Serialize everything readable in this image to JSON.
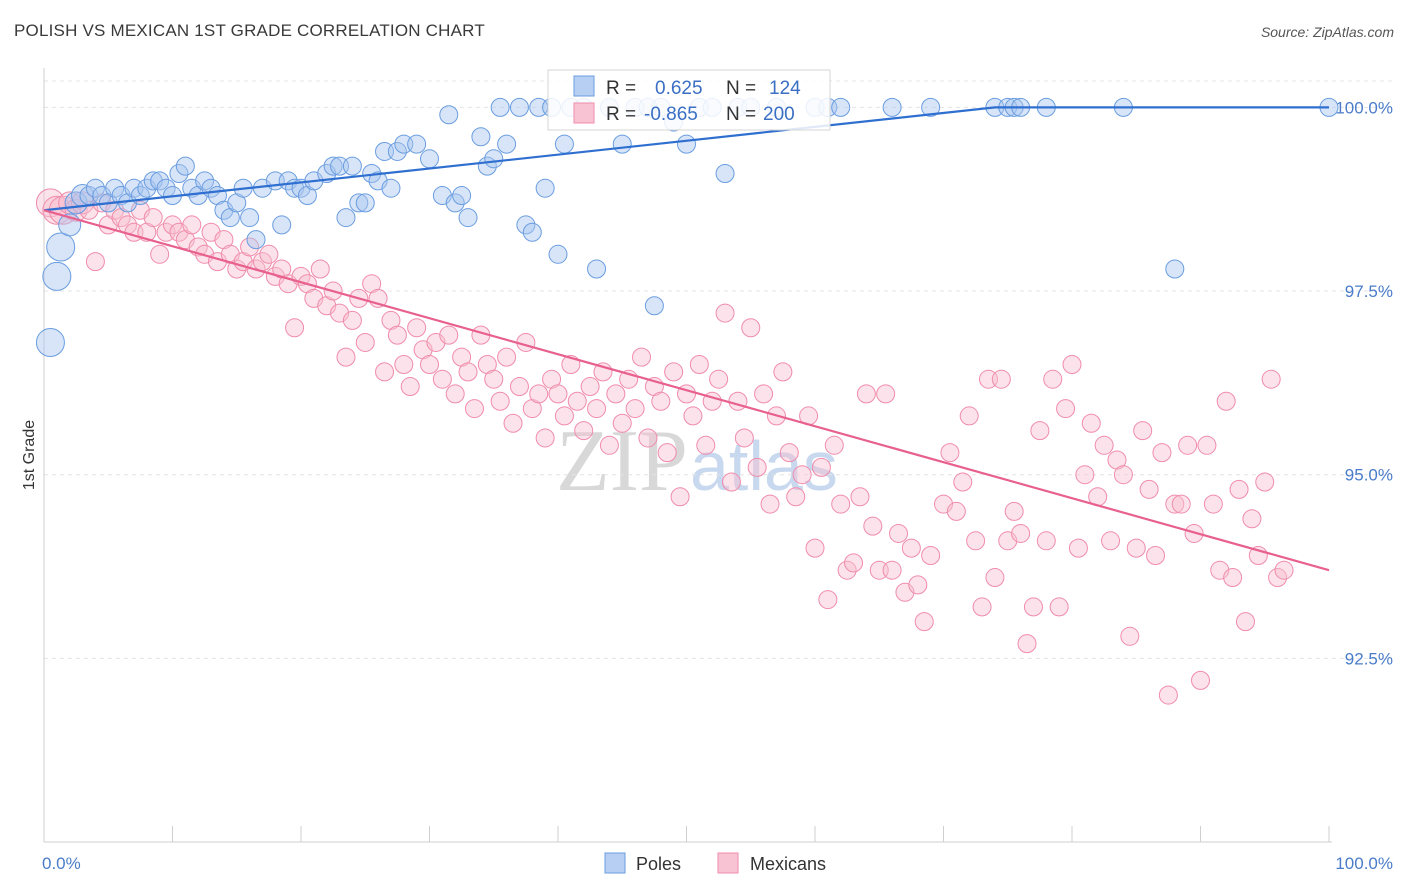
{
  "title": "POLISH VS MEXICAN 1ST GRADE CORRELATION CHART",
  "source": "Source: ZipAtlas.com",
  "watermark": {
    "zip": "ZIP",
    "atlas": "atlas"
  },
  "chart_data": {
    "type": "scatter",
    "title": "POLISH VS MEXICAN 1ST GRADE CORRELATION CHART",
    "xlabel": "",
    "ylabel": "1st Grade",
    "xlim": [
      0,
      100
    ],
    "ylim": [
      90.0,
      100.4
    ],
    "x_tick_labels": [
      "0.0%",
      "100.0%"
    ],
    "y_ticks": [
      92.5,
      95.0,
      97.5,
      100.0
    ],
    "y_tick_labels": [
      "92.5%",
      "95.0%",
      "97.5%",
      "100.0%"
    ],
    "grid": true,
    "colors": {
      "Poles": "#6a9de0",
      "Mexicans": "#f08cac",
      "poles_line": "#2f6fd0",
      "mexicans_line": "#e8608e",
      "axis_text": "#4a7cc9"
    },
    "stats": [
      {
        "series": "Poles",
        "r_label": "R =",
        "r_value": "0.625",
        "n_label": "N =",
        "n_value": "124"
      },
      {
        "series": "Mexicans",
        "r_label": "R =",
        "r_value": "-0.865",
        "n_label": "N =",
        "n_value": "200"
      }
    ],
    "trendlines": [
      {
        "series": "Poles",
        "points": [
          [
            0,
            98.6
          ],
          [
            74,
            100.0
          ],
          [
            100,
            100.0
          ]
        ]
      },
      {
        "series": "Mexicans",
        "points": [
          [
            0,
            98.6
          ],
          [
            100,
            93.7
          ]
        ]
      }
    ],
    "series": [
      {
        "name": "Poles",
        "points": [
          [
            0.5,
            96.8
          ],
          [
            1.0,
            97.7
          ],
          [
            1.3,
            98.1
          ],
          [
            2.0,
            98.4
          ],
          [
            2.5,
            98.7
          ],
          [
            3.0,
            98.8
          ],
          [
            3.5,
            98.8
          ],
          [
            4.0,
            98.9
          ],
          [
            4.5,
            98.8
          ],
          [
            5.0,
            98.7
          ],
          [
            5.5,
            98.9
          ],
          [
            6.0,
            98.8
          ],
          [
            6.5,
            98.7
          ],
          [
            7.0,
            98.9
          ],
          [
            7.5,
            98.8
          ],
          [
            8.0,
            98.9
          ],
          [
            8.5,
            99.0
          ],
          [
            9.0,
            99.0
          ],
          [
            9.5,
            98.9
          ],
          [
            10.0,
            98.8
          ],
          [
            10.5,
            99.1
          ],
          [
            11.0,
            99.2
          ],
          [
            11.5,
            98.9
          ],
          [
            12.0,
            98.8
          ],
          [
            12.5,
            99.0
          ],
          [
            13.0,
            98.9
          ],
          [
            13.5,
            98.8
          ],
          [
            14.0,
            98.6
          ],
          [
            14.5,
            98.5
          ],
          [
            15.0,
            98.7
          ],
          [
            15.5,
            98.9
          ],
          [
            16.0,
            98.5
          ],
          [
            16.5,
            98.2
          ],
          [
            17.0,
            98.9
          ],
          [
            18.0,
            99.0
          ],
          [
            18.5,
            98.4
          ],
          [
            19.0,
            99.0
          ],
          [
            19.5,
            98.9
          ],
          [
            20.0,
            98.9
          ],
          [
            20.5,
            98.8
          ],
          [
            21.0,
            99.0
          ],
          [
            22.0,
            99.1
          ],
          [
            22.5,
            99.2
          ],
          [
            23.0,
            99.2
          ],
          [
            23.5,
            98.5
          ],
          [
            24.0,
            99.2
          ],
          [
            24.5,
            98.7
          ],
          [
            25.0,
            98.7
          ],
          [
            25.5,
            99.1
          ],
          [
            26.0,
            99.0
          ],
          [
            26.5,
            99.4
          ],
          [
            27.0,
            98.9
          ],
          [
            27.5,
            99.4
          ],
          [
            28.0,
            99.5
          ],
          [
            29.0,
            99.5
          ],
          [
            30.0,
            99.3
          ],
          [
            31.0,
            98.8
          ],
          [
            31.5,
            99.9
          ],
          [
            32.0,
            98.7
          ],
          [
            32.5,
            98.8
          ],
          [
            33.0,
            98.5
          ],
          [
            34.0,
            99.6
          ],
          [
            34.5,
            99.2
          ],
          [
            35.0,
            99.3
          ],
          [
            35.5,
            100.0
          ],
          [
            36.0,
            99.5
          ],
          [
            37.0,
            100.0
          ],
          [
            37.5,
            98.4
          ],
          [
            38.0,
            98.3
          ],
          [
            38.5,
            100.0
          ],
          [
            39.0,
            98.9
          ],
          [
            39.5,
            100.0
          ],
          [
            40.0,
            98.0
          ],
          [
            40.5,
            99.5
          ],
          [
            41.0,
            100.0
          ],
          [
            42.0,
            100.0
          ],
          [
            43.0,
            97.8
          ],
          [
            44.0,
            100.0
          ],
          [
            45.0,
            99.5
          ],
          [
            46.0,
            100.0
          ],
          [
            47.0,
            100.0
          ],
          [
            47.5,
            97.3
          ],
          [
            48.0,
            100.0
          ],
          [
            49.0,
            99.8
          ],
          [
            50.0,
            99.5
          ],
          [
            51.0,
            100.0
          ],
          [
            52.0,
            100.0
          ],
          [
            53.0,
            99.1
          ],
          [
            54.0,
            100.0
          ],
          [
            55.0,
            100.0
          ],
          [
            57.0,
            100.0
          ],
          [
            60.0,
            100.0
          ],
          [
            61.0,
            100.0
          ],
          [
            62.0,
            100.0
          ],
          [
            66.0,
            100.0
          ],
          [
            69.0,
            100.0
          ],
          [
            74.0,
            100.0
          ],
          [
            75.0,
            100.0
          ],
          [
            75.5,
            100.0
          ],
          [
            76.0,
            100.0
          ],
          [
            78.0,
            100.0
          ],
          [
            84.0,
            100.0
          ],
          [
            88.0,
            97.8
          ],
          [
            100.0,
            100.0
          ]
        ]
      },
      {
        "name": "Mexicans",
        "points": [
          [
            0.5,
            98.7
          ],
          [
            1.0,
            98.6
          ],
          [
            1.5,
            98.6
          ],
          [
            2.0,
            98.7
          ],
          [
            2.5,
            98.6
          ],
          [
            3.0,
            98.7
          ],
          [
            3.5,
            98.6
          ],
          [
            4.0,
            97.9
          ],
          [
            4.5,
            98.7
          ],
          [
            5.0,
            98.4
          ],
          [
            5.5,
            98.6
          ],
          [
            6.0,
            98.5
          ],
          [
            6.5,
            98.4
          ],
          [
            7.0,
            98.3
          ],
          [
            7.5,
            98.6
          ],
          [
            8.0,
            98.3
          ],
          [
            8.5,
            98.5
          ],
          [
            9.0,
            98.0
          ],
          [
            9.5,
            98.3
          ],
          [
            10.0,
            98.4
          ],
          [
            10.5,
            98.3
          ],
          [
            11.0,
            98.2
          ],
          [
            11.5,
            98.4
          ],
          [
            12.0,
            98.1
          ],
          [
            12.5,
            98.0
          ],
          [
            13.0,
            98.3
          ],
          [
            13.5,
            97.9
          ],
          [
            14.0,
            98.2
          ],
          [
            14.5,
            98.0
          ],
          [
            15.0,
            97.8
          ],
          [
            15.5,
            97.9
          ],
          [
            16.0,
            98.1
          ],
          [
            16.5,
            97.8
          ],
          [
            17.0,
            97.9
          ],
          [
            17.5,
            98.0
          ],
          [
            18.0,
            97.7
          ],
          [
            18.5,
            97.8
          ],
          [
            19.0,
            97.6
          ],
          [
            19.5,
            97.0
          ],
          [
            20.0,
            97.7
          ],
          [
            20.5,
            97.6
          ],
          [
            21.0,
            97.4
          ],
          [
            21.5,
            97.8
          ],
          [
            22.0,
            97.3
          ],
          [
            22.5,
            97.5
          ],
          [
            23.0,
            97.2
          ],
          [
            23.5,
            96.6
          ],
          [
            24.0,
            97.1
          ],
          [
            24.5,
            97.4
          ],
          [
            25.0,
            96.8
          ],
          [
            25.5,
            97.6
          ],
          [
            26.0,
            97.4
          ],
          [
            26.5,
            96.4
          ],
          [
            27.0,
            97.1
          ],
          [
            27.5,
            96.9
          ],
          [
            28.0,
            96.5
          ],
          [
            28.5,
            96.2
          ],
          [
            29.0,
            97.0
          ],
          [
            29.5,
            96.7
          ],
          [
            30.0,
            96.5
          ],
          [
            30.5,
            96.8
          ],
          [
            31.0,
            96.3
          ],
          [
            31.5,
            96.9
          ],
          [
            32.0,
            96.1
          ],
          [
            32.5,
            96.6
          ],
          [
            33.0,
            96.4
          ],
          [
            33.5,
            95.9
          ],
          [
            34.0,
            96.9
          ],
          [
            34.5,
            96.5
          ],
          [
            35.0,
            96.3
          ],
          [
            35.5,
            96.0
          ],
          [
            36.0,
            96.6
          ],
          [
            36.5,
            95.7
          ],
          [
            37.0,
            96.2
          ],
          [
            37.5,
            96.8
          ],
          [
            38.0,
            95.9
          ],
          [
            38.5,
            96.1
          ],
          [
            39.0,
            95.5
          ],
          [
            39.5,
            96.3
          ],
          [
            40.0,
            96.1
          ],
          [
            40.5,
            95.8
          ],
          [
            41.0,
            96.5
          ],
          [
            41.5,
            96.0
          ],
          [
            42.0,
            95.6
          ],
          [
            42.5,
            96.2
          ],
          [
            43.0,
            95.9
          ],
          [
            43.5,
            96.4
          ],
          [
            44.0,
            95.4
          ],
          [
            44.5,
            96.1
          ],
          [
            45.0,
            95.7
          ],
          [
            45.5,
            96.3
          ],
          [
            46.0,
            95.9
          ],
          [
            46.5,
            96.6
          ],
          [
            47.0,
            95.5
          ],
          [
            47.5,
            96.2
          ],
          [
            48.0,
            96.0
          ],
          [
            48.5,
            95.3
          ],
          [
            49.0,
            96.4
          ],
          [
            49.5,
            94.7
          ],
          [
            50.0,
            96.1
          ],
          [
            50.5,
            95.8
          ],
          [
            51.0,
            96.5
          ],
          [
            51.5,
            95.4
          ],
          [
            52.0,
            96.0
          ],
          [
            52.5,
            96.3
          ],
          [
            53.0,
            97.2
          ],
          [
            53.5,
            94.9
          ],
          [
            54.0,
            96.0
          ],
          [
            54.5,
            95.5
          ],
          [
            55.0,
            97.0
          ],
          [
            55.5,
            95.1
          ],
          [
            56.0,
            96.1
          ],
          [
            56.5,
            94.6
          ],
          [
            57.0,
            95.8
          ],
          [
            57.5,
            96.4
          ],
          [
            58.0,
            95.3
          ],
          [
            58.5,
            94.7
          ],
          [
            59.0,
            95.0
          ],
          [
            59.5,
            95.8
          ],
          [
            60.0,
            94.0
          ],
          [
            60.5,
            95.1
          ],
          [
            61.0,
            93.3
          ],
          [
            61.5,
            95.4
          ],
          [
            62.0,
            94.6
          ],
          [
            62.5,
            93.7
          ],
          [
            63.0,
            93.8
          ],
          [
            63.5,
            94.7
          ],
          [
            64.0,
            96.1
          ],
          [
            64.5,
            94.3
          ],
          [
            65.0,
            93.7
          ],
          [
            65.5,
            96.1
          ],
          [
            66.0,
            93.7
          ],
          [
            66.5,
            94.2
          ],
          [
            67.0,
            93.4
          ],
          [
            67.5,
            94.0
          ],
          [
            68.0,
            93.5
          ],
          [
            68.5,
            93.0
          ],
          [
            69.0,
            93.9
          ],
          [
            70.0,
            94.6
          ],
          [
            70.5,
            95.3
          ],
          [
            71.0,
            94.5
          ],
          [
            71.5,
            94.9
          ],
          [
            72.0,
            95.8
          ],
          [
            72.5,
            94.1
          ],
          [
            73.0,
            93.2
          ],
          [
            73.5,
            96.3
          ],
          [
            74.0,
            93.6
          ],
          [
            74.5,
            96.3
          ],
          [
            75.0,
            94.1
          ],
          [
            75.5,
            94.5
          ],
          [
            76.0,
            94.2
          ],
          [
            76.5,
            92.7
          ],
          [
            77.0,
            93.2
          ],
          [
            77.5,
            95.6
          ],
          [
            78.0,
            94.1
          ],
          [
            78.5,
            96.3
          ],
          [
            79.0,
            93.2
          ],
          [
            79.5,
            95.9
          ],
          [
            80.0,
            96.5
          ],
          [
            80.5,
            94.0
          ],
          [
            81.0,
            95.0
          ],
          [
            81.5,
            95.7
          ],
          [
            82.0,
            94.7
          ],
          [
            82.5,
            95.4
          ],
          [
            83.0,
            94.1
          ],
          [
            83.5,
            95.2
          ],
          [
            84.0,
            95.0
          ],
          [
            84.5,
            92.8
          ],
          [
            85.0,
            94.0
          ],
          [
            85.5,
            95.6
          ],
          [
            86.0,
            94.8
          ],
          [
            86.5,
            93.9
          ],
          [
            87.0,
            95.3
          ],
          [
            87.5,
            92.0
          ],
          [
            88.0,
            94.6
          ],
          [
            88.5,
            94.6
          ],
          [
            89.0,
            95.4
          ],
          [
            89.5,
            94.2
          ],
          [
            90.0,
            92.2
          ],
          [
            90.5,
            95.4
          ],
          [
            91.0,
            94.6
          ],
          [
            91.5,
            93.7
          ],
          [
            92.0,
            96.0
          ],
          [
            92.5,
            93.6
          ],
          [
            93.0,
            94.8
          ],
          [
            93.5,
            93.0
          ],
          [
            94.0,
            94.4
          ],
          [
            94.5,
            93.9
          ],
          [
            95.0,
            94.9
          ],
          [
            95.5,
            96.3
          ],
          [
            96.0,
            93.6
          ],
          [
            96.5,
            93.7
          ]
        ]
      }
    ]
  },
  "legend": {
    "items": [
      {
        "label": "Poles"
      },
      {
        "label": "Mexicans"
      }
    ]
  }
}
